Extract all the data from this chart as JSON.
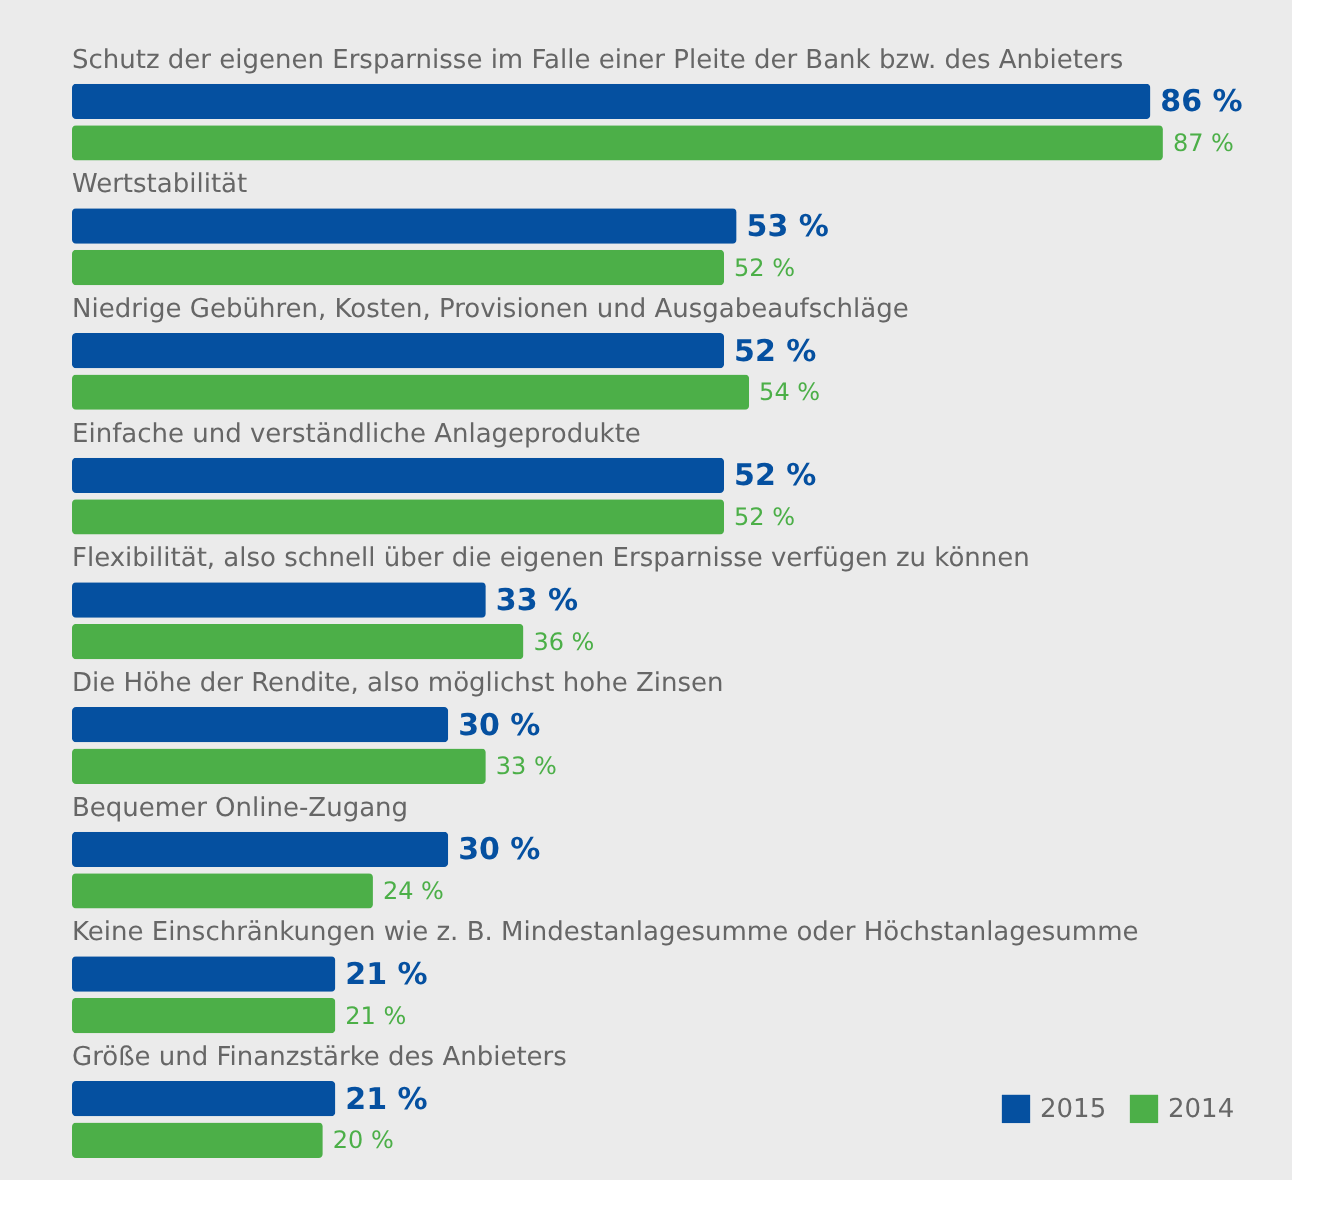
{
  "chart_data": {
    "type": "bar",
    "orientation": "horizontal",
    "categories": [
      "Schutz der eigenen Ersparnisse im Falle einer Pleite der Bank bzw. des Anbieters",
      "Wertstabilität",
      "Niedrige Gebühren, Kosten, Provisionen und Ausgabeaufschläge",
      "Einfache und verständliche Anlageprodukte",
      "Flexibilität, also schnell über die eigenen Ersparnisse verfügen zu können",
      "Die Höhe der Rendite, also möglichst hohe Zinsen",
      "Bequemer Online-Zugang",
      "Keine Einschränkungen wie z. B. Mindestanlagesumme oder Höchstanlagesumme",
      "Größe und Finanzstärke des Anbieters"
    ],
    "series": [
      {
        "name": "2015",
        "color": "#0550a0",
        "values": [
          86,
          53,
          52,
          52,
          33,
          30,
          30,
          21,
          21
        ],
        "value_labels": [
          "86 %",
          "53 %",
          "52 %",
          "52 %",
          "33 %",
          "30 %",
          "30 %",
          "21 %",
          "21 %"
        ]
      },
      {
        "name": "2014",
        "color": "#4caf48",
        "values": [
          87,
          52,
          54,
          52,
          36,
          33,
          24,
          21,
          20
        ],
        "value_labels": [
          "87 %",
          "52 %",
          "54 %",
          "52 %",
          "36 %",
          "33 %",
          "24 %",
          "21 %",
          "20 %"
        ]
      }
    ],
    "legend": "bottom right",
    "grid": false
  }
}
